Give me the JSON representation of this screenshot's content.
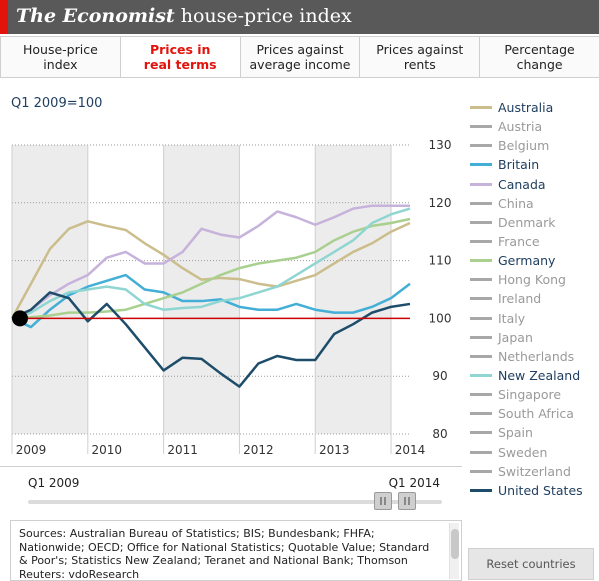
{
  "header": {
    "title_brand": "The Economist",
    "title_rest": " house-price index"
  },
  "tabs": [
    {
      "label": "House-price\nindex",
      "active": false
    },
    {
      "label": "Prices in\nreal terms",
      "active": true
    },
    {
      "label": "Prices against\naverage income",
      "active": false
    },
    {
      "label": "Prices against\nrents",
      "active": false
    },
    {
      "label": "Percentage\nchange",
      "active": false
    }
  ],
  "slider": {
    "start_label": "Q1 2009",
    "end_label": "Q1 2014"
  },
  "sources": "Sources: Australian Bureau of Statistics; BIS; Bundesbank; FHFA; Nationwide; OECD; Office for National Statistics; Quotable Value; Standard & Poor's; Statistics New Zealand; Teranet and National Bank; Thomson Reuters: vdoResearch",
  "reset_label": "Reset countries",
  "colors": {
    "accent": "#e3120b",
    "baseline": "#cc0000",
    "inactive": "#a8a8a8"
  },
  "chart_data": {
    "type": "line",
    "subtitle": "Q1 2009=100",
    "x_ticks": [
      "2009",
      "2010",
      "2011",
      "2012",
      "2013",
      "2014"
    ],
    "x_range": [
      2009.0,
      2014.25
    ],
    "ylim": [
      80,
      130
    ],
    "y_ticks": [
      80,
      90,
      100,
      110,
      120,
      130
    ],
    "baseline": 100,
    "shaded_years": [
      "2009",
      "2011",
      "2013"
    ],
    "y_axis_position": "right",
    "legend_position": "right",
    "series": [
      {
        "name": "Australia",
        "active": true,
        "color": "#cbbd8c",
        "x": [
          2009.0,
          2009.25,
          2009.5,
          2009.75,
          2010.0,
          2010.25,
          2010.5,
          2010.75,
          2011.0,
          2011.25,
          2011.5,
          2011.75,
          2012.0,
          2012.25,
          2012.5,
          2012.75,
          2013.0,
          2013.25,
          2013.5,
          2013.75,
          2014.0,
          2014.25
        ],
        "values": [
          100,
          106,
          112,
          115.5,
          116.8,
          116,
          115.3,
          113,
          111,
          108.7,
          106.7,
          107,
          106.8,
          106,
          105.5,
          106.5,
          107.5,
          109.5,
          111.5,
          113,
          115,
          116.5
        ]
      },
      {
        "name": "Austria",
        "active": false,
        "color": "#a8a8a8"
      },
      {
        "name": "Belgium",
        "active": false,
        "color": "#a8a8a8"
      },
      {
        "name": "Britain",
        "active": true,
        "color": "#43aed6",
        "x": [
          2009.0,
          2009.25,
          2009.5,
          2009.75,
          2010.0,
          2010.25,
          2010.5,
          2010.75,
          2011.0,
          2011.25,
          2011.5,
          2011.75,
          2012.0,
          2012.25,
          2012.5,
          2012.75,
          2013.0,
          2013.25,
          2013.5,
          2013.75,
          2014.0,
          2014.25
        ],
        "values": [
          100,
          98.5,
          101.5,
          104,
          105.5,
          106.5,
          107.5,
          105,
          104.5,
          103,
          103,
          103.3,
          102,
          101.5,
          101.5,
          102.5,
          101.5,
          101,
          101,
          102,
          103.5,
          106
        ]
      },
      {
        "name": "Canada",
        "active": true,
        "color": "#c6b2da",
        "x": [
          2009.0,
          2009.25,
          2009.5,
          2009.75,
          2010.0,
          2010.25,
          2010.5,
          2010.75,
          2011.0,
          2011.25,
          2011.5,
          2011.75,
          2012.0,
          2012.25,
          2012.5,
          2012.75,
          2013.0,
          2013.25,
          2013.5,
          2013.75,
          2014.0,
          2014.25
        ],
        "values": [
          100,
          101.5,
          104,
          106,
          107.5,
          110.5,
          111.5,
          109.5,
          109.5,
          111.5,
          115.5,
          114.5,
          114,
          116,
          118.5,
          117.5,
          116.2,
          117.5,
          119,
          119.5,
          119.5,
          119.5
        ]
      },
      {
        "name": "China",
        "active": false,
        "color": "#a8a8a8"
      },
      {
        "name": "Denmark",
        "active": false,
        "color": "#a8a8a8"
      },
      {
        "name": "France",
        "active": false,
        "color": "#a8a8a8"
      },
      {
        "name": "Germany",
        "active": true,
        "color": "#a9d08e",
        "x": [
          2009.0,
          2009.25,
          2009.5,
          2009.75,
          2010.0,
          2010.25,
          2010.5,
          2010.75,
          2011.0,
          2011.25,
          2011.5,
          2011.75,
          2012.0,
          2012.25,
          2012.5,
          2012.75,
          2013.0,
          2013.25,
          2013.5,
          2013.75,
          2014.0,
          2014.25
        ],
        "values": [
          100,
          100.2,
          100.5,
          101,
          101,
          101.2,
          101.5,
          102.5,
          103.5,
          104.5,
          106,
          107.5,
          108.7,
          109.5,
          110,
          110.5,
          111.5,
          113.5,
          115,
          116,
          116.5,
          117.2
        ]
      },
      {
        "name": "Hong Kong",
        "active": false,
        "color": "#a8a8a8"
      },
      {
        "name": "Ireland",
        "active": false,
        "color": "#a8a8a8"
      },
      {
        "name": "Italy",
        "active": false,
        "color": "#a8a8a8"
      },
      {
        "name": "Japan",
        "active": false,
        "color": "#a8a8a8"
      },
      {
        "name": "Netherlands",
        "active": false,
        "color": "#a8a8a8"
      },
      {
        "name": "New Zealand",
        "active": true,
        "color": "#8fd6d2",
        "x": [
          2009.0,
          2009.25,
          2009.5,
          2009.75,
          2010.0,
          2010.25,
          2010.5,
          2010.75,
          2011.0,
          2011.25,
          2011.5,
          2011.75,
          2012.0,
          2012.25,
          2012.5,
          2012.75,
          2013.0,
          2013.25,
          2013.5,
          2013.75,
          2014.0,
          2014.25
        ],
        "values": [
          100,
          101,
          103,
          104.5,
          105,
          105.5,
          105,
          102.5,
          101.5,
          101.8,
          102,
          103,
          103.5,
          104.5,
          105.5,
          107.5,
          109.5,
          111.5,
          113.5,
          116.5,
          118,
          119
        ]
      },
      {
        "name": "Singapore",
        "active": false,
        "color": "#a8a8a8"
      },
      {
        "name": "South Africa",
        "active": false,
        "color": "#a8a8a8"
      },
      {
        "name": "Spain",
        "active": false,
        "color": "#a8a8a8"
      },
      {
        "name": "Sweden",
        "active": false,
        "color": "#a8a8a8"
      },
      {
        "name": "Switzerland",
        "active": false,
        "color": "#a8a8a8"
      },
      {
        "name": "United States",
        "active": true,
        "color": "#1e4d6b",
        "x": [
          2009.0,
          2009.25,
          2009.5,
          2009.75,
          2010.0,
          2010.25,
          2010.5,
          2010.75,
          2011.0,
          2011.25,
          2011.5,
          2011.75,
          2012.0,
          2012.25,
          2012.5,
          2012.75,
          2013.0,
          2013.25,
          2013.5,
          2013.75,
          2014.0,
          2014.25
        ],
        "values": [
          100,
          101.5,
          104.5,
          103.5,
          99.5,
          102.5,
          99,
          95,
          91,
          93.2,
          93,
          90.5,
          88.2,
          92.2,
          93.5,
          92.8,
          92.8,
          97.3,
          99,
          101,
          102,
          102.5
        ]
      }
    ]
  }
}
